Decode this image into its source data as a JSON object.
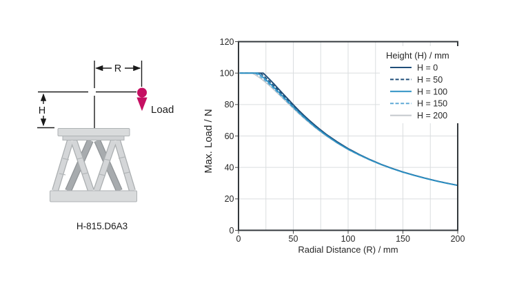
{
  "figure": {
    "model_label": "H-815.D6A3",
    "dim_r_label": "R",
    "dim_h_label": "H",
    "load_label": "Load",
    "accent_color": "#C50F62",
    "line_color": "#1a1a1a",
    "platform_fill": "#D9DBDC",
    "strut_light": "#D4D6D8",
    "strut_dark": "#A7ABAE"
  },
  "chart_data": {
    "type": "line",
    "title": "",
    "xlabel": "Radial Distance (R) / mm",
    "ylabel": "Max. Load / N",
    "xlim": [
      0,
      200
    ],
    "ylim": [
      0,
      120
    ],
    "x_major_ticks": [
      0,
      50,
      100,
      150,
      200
    ],
    "y_major_ticks": [
      0,
      20,
      40,
      60,
      80,
      100,
      120
    ],
    "x_grid_step": 25,
    "y_grid_step": 20,
    "grid": true,
    "grid_color": "#DADDDF",
    "axis_color": "#33383C",
    "text_color": "#262626",
    "legend_title": "Height (H) / mm",
    "legend_position": "top-right",
    "draw_order": [
      4,
      3,
      0,
      1,
      2
    ],
    "series": [
      {
        "name": "H = 0",
        "color": "#1F4E79",
        "dash": "solid",
        "width": 1.9,
        "points": [
          [
            1,
            100
          ],
          [
            22.5,
            100
          ],
          [
            25,
            98.3
          ],
          [
            27.5,
            96.6
          ],
          [
            30,
            94.8
          ],
          [
            32.5,
            93
          ],
          [
            35,
            91.1
          ],
          [
            40,
            87.3
          ],
          [
            45,
            83.6
          ],
          [
            50,
            79.9
          ],
          [
            55,
            76.3
          ],
          [
            60,
            72.9
          ],
          [
            65,
            69.7
          ],
          [
            70,
            66.7
          ],
          [
            75,
            63.8
          ],
          [
            80,
            61.1
          ],
          [
            90,
            56.3
          ],
          [
            100,
            52
          ],
          [
            110,
            48.3
          ],
          [
            120,
            45
          ],
          [
            130,
            42
          ],
          [
            140,
            39.4
          ],
          [
            150,
            37.1
          ],
          [
            160,
            35.1
          ],
          [
            170,
            33.2
          ],
          [
            180,
            31.5
          ],
          [
            190,
            30
          ],
          [
            200,
            28.6
          ]
        ]
      },
      {
        "name": "H = 50",
        "color": "#1F4E79",
        "dash": "dashed",
        "width": 1.7,
        "points": [
          [
            1,
            100
          ],
          [
            20,
            100
          ],
          [
            22.5,
            98.5
          ],
          [
            25,
            96.9
          ],
          [
            30,
            93.6
          ],
          [
            35,
            90
          ],
          [
            40,
            86.3
          ],
          [
            45,
            82.7
          ],
          [
            50,
            79.1
          ],
          [
            55,
            75.7
          ],
          [
            60,
            72.4
          ],
          [
            65,
            69.2
          ],
          [
            70,
            66.2
          ],
          [
            75,
            63.4
          ],
          [
            80,
            60.8
          ],
          [
            90,
            56
          ],
          [
            100,
            51.8
          ],
          [
            110,
            48.2
          ],
          [
            120,
            44.9
          ],
          [
            130,
            41.9
          ],
          [
            140,
            39.4
          ],
          [
            150,
            37
          ],
          [
            160,
            35.1
          ],
          [
            170,
            33.2
          ],
          [
            180,
            31.5
          ],
          [
            190,
            30
          ],
          [
            200,
            28.6
          ]
        ]
      },
      {
        "name": "H = 100",
        "color": "#2B90C4",
        "dash": "solid",
        "width": 1.8,
        "points": [
          [
            1,
            100
          ],
          [
            17.5,
            100
          ],
          [
            20,
            98.7
          ],
          [
            22.5,
            97.3
          ],
          [
            25,
            95.8
          ],
          [
            30,
            92.5
          ],
          [
            35,
            89
          ],
          [
            40,
            85.5
          ],
          [
            45,
            82
          ],
          [
            50,
            78.5
          ],
          [
            55,
            75.1
          ],
          [
            60,
            71.9
          ],
          [
            65,
            68.8
          ],
          [
            70,
            65.8
          ],
          [
            75,
            63.1
          ],
          [
            80,
            60.5
          ],
          [
            90,
            55.7
          ],
          [
            100,
            51.6
          ],
          [
            110,
            48.1
          ],
          [
            120,
            44.8
          ],
          [
            130,
            41.9
          ],
          [
            140,
            39.3
          ],
          [
            150,
            37
          ],
          [
            160,
            35
          ],
          [
            170,
            33.1
          ],
          [
            180,
            31.4
          ],
          [
            190,
            29.9
          ],
          [
            200,
            28.6
          ]
        ]
      },
      {
        "name": "H = 150",
        "color": "#5FA9D6",
        "dash": "dashed",
        "width": 1.6,
        "points": [
          [
            1,
            100
          ],
          [
            15,
            100
          ],
          [
            17.5,
            98.9
          ],
          [
            20,
            97.6
          ],
          [
            25,
            94.8
          ],
          [
            30,
            91.6
          ],
          [
            35,
            88.2
          ],
          [
            40,
            84.8
          ],
          [
            45,
            81.3
          ],
          [
            50,
            77.9
          ],
          [
            55,
            74.6
          ],
          [
            60,
            71.4
          ],
          [
            65,
            68.4
          ],
          [
            70,
            65.5
          ],
          [
            75,
            62.8
          ],
          [
            80,
            60.2
          ],
          [
            90,
            55.6
          ],
          [
            100,
            51.4
          ],
          [
            110,
            47.9
          ],
          [
            120,
            44.7
          ],
          [
            130,
            41.8
          ],
          [
            140,
            39.3
          ],
          [
            150,
            36.9
          ],
          [
            160,
            35
          ],
          [
            170,
            33.1
          ],
          [
            180,
            31.4
          ],
          [
            190,
            29.9
          ],
          [
            200,
            28.6
          ]
        ]
      },
      {
        "name": "H = 200",
        "color": "#C3C8CC",
        "dash": "solid",
        "width": 1.5,
        "points": [
          [
            1,
            100
          ],
          [
            12.5,
            100
          ],
          [
            15,
            99
          ],
          [
            17.5,
            97.9
          ],
          [
            20,
            96.7
          ],
          [
            25,
            93.9
          ],
          [
            30,
            90.9
          ],
          [
            35,
            87.6
          ],
          [
            40,
            84.2
          ],
          [
            45,
            80.8
          ],
          [
            50,
            77.5
          ],
          [
            55,
            74.2
          ],
          [
            60,
            71.1
          ],
          [
            65,
            68.1
          ],
          [
            70,
            65.2
          ],
          [
            75,
            62.6
          ],
          [
            80,
            60
          ],
          [
            90,
            55.4
          ],
          [
            100,
            51.3
          ],
          [
            110,
            47.8
          ],
          [
            120,
            44.6
          ],
          [
            130,
            41.7
          ],
          [
            140,
            39.2
          ],
          [
            150,
            36.9
          ],
          [
            160,
            34.9
          ],
          [
            170,
            33.1
          ],
          [
            180,
            31.4
          ],
          [
            190,
            29.9
          ],
          [
            200,
            28.5
          ]
        ]
      }
    ]
  }
}
